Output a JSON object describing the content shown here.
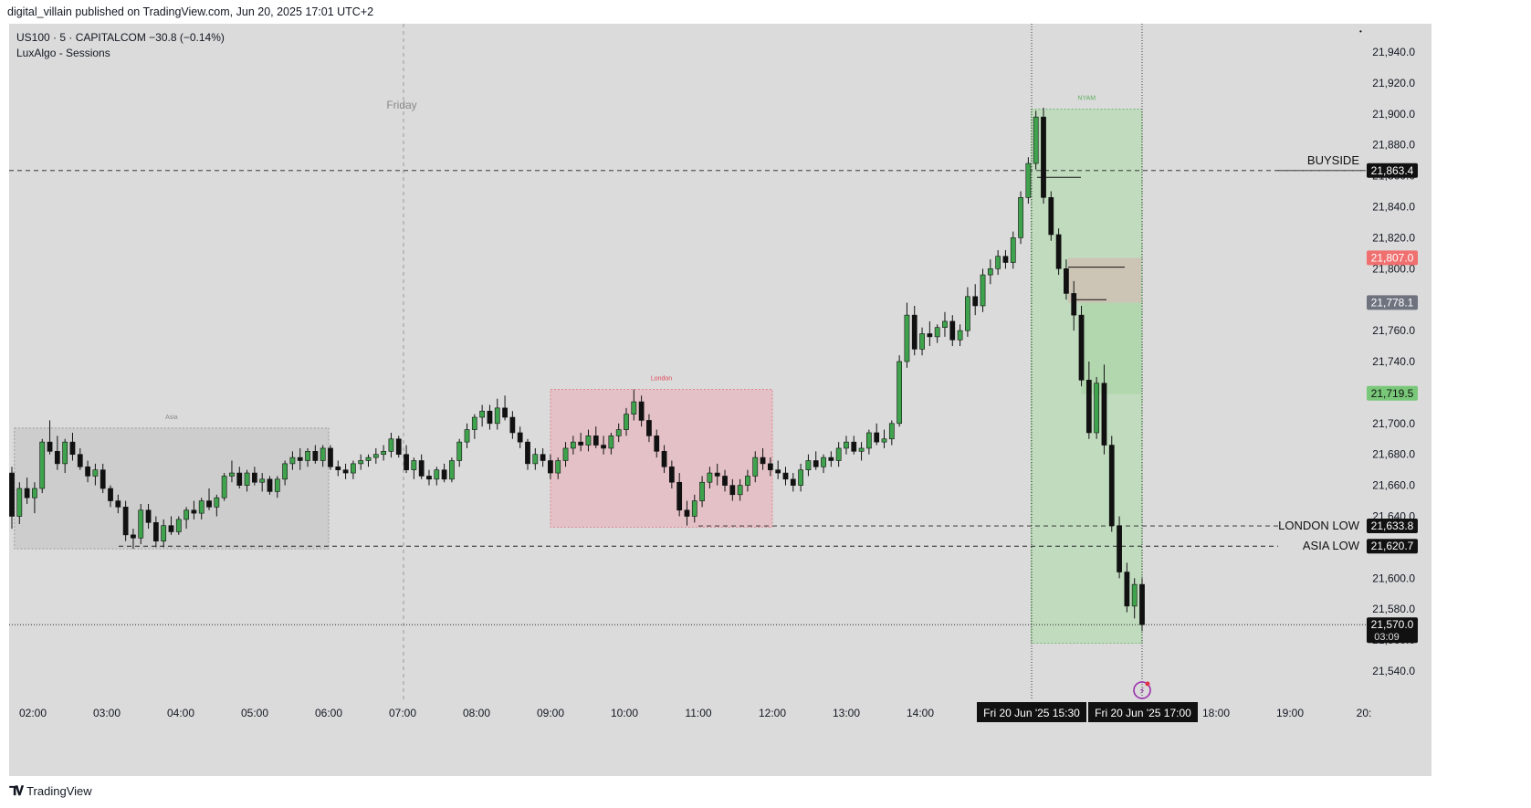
{
  "header": {
    "published_text": "digital_villain published on TradingView.com, Jun 20, 2025 17:01 UTC+2"
  },
  "legend": {
    "symbol_line": "US100 · 5 · CAPITALCOM  −30.8 (−0.14%)",
    "indicator": "LuxAlgo - Sessions"
  },
  "footer": {
    "brand": "TradingView",
    "brand_icon": "tradingview-logo-icon"
  },
  "colors": {
    "background": "#dbdbdb",
    "up_candle": "#3fa34d",
    "down_candle": "#111111",
    "asia_box": "#c8c8c8",
    "london_box": "#e8b7bf",
    "ny_box": "#b7dbb4",
    "price_tag_red": "#f07070",
    "price_tag_gray": "#6f7380",
    "price_tag_green": "#79c879"
  },
  "chart_data": {
    "type": "candlestick",
    "ylim": [
      21530,
      21950
    ],
    "y_ticks": [
      "21,940.0",
      "21,920.0",
      "21,900.0",
      "21,880.0",
      "21,860.0",
      "21,840.0",
      "21,820.0",
      "21,800.0",
      "21,780.0",
      "21,760.0",
      "21,740.0",
      "21,720.0",
      "21,700.0",
      "21,680.0",
      "21,660.0",
      "21,640.0",
      "21,620.0",
      "21,600.0",
      "21,580.0",
      "21,560.0",
      "21,540.0"
    ],
    "x_ticks": [
      "02:00",
      "03:00",
      "04:00",
      "05:00",
      "06:00",
      "07:00",
      "08:00",
      "09:00",
      "10:00",
      "11:00",
      "12:00",
      "13:00",
      "14:00",
      "15:00",
      "16:00",
      "17:00",
      "18:00",
      "19:00",
      "20:"
    ],
    "x_highlight_labels": [
      "Fri 20 Jun '25   15:30",
      "Fri 20 Jun '25   17:00"
    ],
    "day_label": "Friday",
    "sessions": [
      {
        "name": "Asia",
        "start": "01:45",
        "end": "06:00",
        "high": 21697,
        "low": 21619
      },
      {
        "name": "London",
        "start": "09:00",
        "end": "12:00",
        "high": 21722,
        "low": 21633
      },
      {
        "name": "NYAM",
        "start": "15:30",
        "end": "17:00",
        "high": 21903,
        "low": 21558
      }
    ],
    "levels": [
      {
        "label": "BUYSIDE",
        "price": 21863.4,
        "tag": "21,863.4"
      },
      {
        "label": "LONDON LOW",
        "price": 21633.8,
        "tag": "21,633.8"
      },
      {
        "label": "ASIA LOW",
        "price": 21620.7,
        "tag": "21,620.7"
      }
    ],
    "price_tags": [
      {
        "price": 21807.0,
        "tag": "21,807.0",
        "style": "red"
      },
      {
        "price": 21778.1,
        "tag": "21,778.1",
        "style": "gray"
      },
      {
        "price": 21719.5,
        "tag": "21,719.5",
        "style": "green"
      }
    ],
    "last_price": {
      "price": 21570.0,
      "tag": "21,570.0",
      "countdown": "03:09"
    },
    "position_zone": {
      "entry": 21778,
      "stop": 21807,
      "target": 21719
    },
    "candles": [
      [
        21668,
        21672,
        21632,
        21640
      ],
      [
        21640,
        21662,
        21635,
        21658
      ],
      [
        21658,
        21665,
        21648,
        21652
      ],
      [
        21652,
        21662,
        21642,
        21658
      ],
      [
        21658,
        21690,
        21655,
        21688
      ],
      [
        21688,
        21702,
        21680,
        21682
      ],
      [
        21682,
        21692,
        21670,
        21674
      ],
      [
        21674,
        21690,
        21668,
        21688
      ],
      [
        21688,
        21694,
        21676,
        21680
      ],
      [
        21680,
        21684,
        21670,
        21672
      ],
      [
        21672,
        21676,
        21662,
        21666
      ],
      [
        21666,
        21674,
        21660,
        21670
      ],
      [
        21670,
        21674,
        21655,
        21658
      ],
      [
        21658,
        21660,
        21646,
        21650
      ],
      [
        21650,
        21654,
        21642,
        21646
      ],
      [
        21646,
        21650,
        21624,
        21628
      ],
      [
        21628,
        21632,
        21619,
        21626
      ],
      [
        21626,
        21648,
        21622,
        21644
      ],
      [
        21644,
        21648,
        21632,
        21636
      ],
      [
        21636,
        21640,
        21620,
        21624
      ],
      [
        21624,
        21638,
        21620,
        21634
      ],
      [
        21634,
        21640,
        21628,
        21630
      ],
      [
        21630,
        21640,
        21628,
        21638
      ],
      [
        21638,
        21646,
        21632,
        21644
      ],
      [
        21644,
        21650,
        21638,
        21642
      ],
      [
        21642,
        21652,
        21638,
        21650
      ],
      [
        21650,
        21658,
        21644,
        21646
      ],
      [
        21646,
        21654,
        21640,
        21652
      ],
      [
        21652,
        21668,
        21650,
        21666
      ],
      [
        21666,
        21676,
        21662,
        21668
      ],
      [
        21668,
        21672,
        21658,
        21660
      ],
      [
        21660,
        21670,
        21656,
        21668
      ],
      [
        21668,
        21672,
        21660,
        21662
      ],
      [
        21662,
        21668,
        21656,
        21664
      ],
      [
        21664,
        21666,
        21654,
        21656
      ],
      [
        21656,
        21666,
        21652,
        21664
      ],
      [
        21664,
        21676,
        21660,
        21674
      ],
      [
        21674,
        21682,
        21670,
        21678
      ],
      [
        21678,
        21684,
        21670,
        21676
      ],
      [
        21676,
        21684,
        21672,
        21682
      ],
      [
        21682,
        21686,
        21674,
        21676
      ],
      [
        21676,
        21686,
        21672,
        21684
      ],
      [
        21684,
        21686,
        21670,
        21672
      ],
      [
        21672,
        21676,
        21666,
        21670
      ],
      [
        21670,
        21674,
        21664,
        21668
      ],
      [
        21668,
        21676,
        21664,
        21674
      ],
      [
        21674,
        21680,
        21670,
        21676
      ],
      [
        21676,
        21680,
        21672,
        21678
      ],
      [
        21678,
        21684,
        21674,
        21680
      ],
      [
        21680,
        21686,
        21676,
        21682
      ],
      [
        21682,
        21694,
        21678,
        21690
      ],
      [
        21690,
        21692,
        21678,
        21680
      ],
      [
        21680,
        21686,
        21668,
        21670
      ],
      [
        21670,
        21678,
        21664,
        21676
      ],
      [
        21676,
        21680,
        21664,
        21666
      ],
      [
        21666,
        21670,
        21660,
        21664
      ],
      [
        21664,
        21672,
        21660,
        21670
      ],
      [
        21670,
        21674,
        21662,
        21664
      ],
      [
        21664,
        21678,
        21662,
        21676
      ],
      [
        21676,
        21690,
        21672,
        21688
      ],
      [
        21688,
        21700,
        21684,
        21696
      ],
      [
        21696,
        21706,
        21690,
        21704
      ],
      [
        21704,
        21712,
        21698,
        21708
      ],
      [
        21708,
        21712,
        21696,
        21700
      ],
      [
        21700,
        21716,
        21696,
        21710
      ],
      [
        21710,
        21718,
        21702,
        21704
      ],
      [
        21704,
        21708,
        21690,
        21694
      ],
      [
        21694,
        21698,
        21684,
        21688
      ],
      [
        21688,
        21690,
        21670,
        21674
      ],
      [
        21674,
        21684,
        21670,
        21680
      ],
      [
        21680,
        21684,
        21672,
        21676
      ],
      [
        21676,
        21680,
        21664,
        21668
      ],
      [
        21668,
        21678,
        21664,
        21676
      ],
      [
        21676,
        21688,
        21672,
        21684
      ],
      [
        21684,
        21692,
        21680,
        21688
      ],
      [
        21688,
        21694,
        21682,
        21686
      ],
      [
        21686,
        21696,
        21682,
        21692
      ],
      [
        21692,
        21698,
        21684,
        21686
      ],
      [
        21686,
        21692,
        21680,
        21684
      ],
      [
        21684,
        21694,
        21680,
        21692
      ],
      [
        21692,
        21700,
        21688,
        21696
      ],
      [
        21696,
        21710,
        21692,
        21706
      ],
      [
        21706,
        21722,
        21702,
        21714
      ],
      [
        21714,
        21718,
        21698,
        21702
      ],
      [
        21702,
        21706,
        21688,
        21692
      ],
      [
        21692,
        21696,
        21678,
        21682
      ],
      [
        21682,
        21686,
        21668,
        21672
      ],
      [
        21672,
        21676,
        21658,
        21662
      ],
      [
        21662,
        21668,
        21640,
        21644
      ],
      [
        21644,
        21650,
        21634,
        21640
      ],
      [
        21640,
        21654,
        21636,
        21650
      ],
      [
        21650,
        21666,
        21646,
        21662
      ],
      [
        21662,
        21672,
        21658,
        21668
      ],
      [
        21668,
        21674,
        21660,
        21666
      ],
      [
        21666,
        21670,
        21656,
        21660
      ],
      [
        21660,
        21664,
        21650,
        21654
      ],
      [
        21654,
        21664,
        21650,
        21660
      ],
      [
        21660,
        21670,
        21656,
        21666
      ],
      [
        21666,
        21682,
        21662,
        21678
      ],
      [
        21678,
        21684,
        21670,
        21674
      ],
      [
        21674,
        21678,
        21666,
        21670
      ],
      [
        21670,
        21676,
        21664,
        21668
      ],
      [
        21668,
        21672,
        21660,
        21664
      ],
      [
        21664,
        21668,
        21656,
        21660
      ],
      [
        21660,
        21674,
        21656,
        21670
      ],
      [
        21670,
        21680,
        21666,
        21676
      ],
      [
        21676,
        21682,
        21670,
        21672
      ],
      [
        21672,
        21680,
        21668,
        21678
      ],
      [
        21678,
        21682,
        21672,
        21676
      ],
      [
        21676,
        21688,
        21672,
        21684
      ],
      [
        21684,
        21692,
        21680,
        21688
      ],
      [
        21688,
        21692,
        21680,
        21682
      ],
      [
        21682,
        21688,
        21676,
        21684
      ],
      [
        21684,
        21696,
        21680,
        21694
      ],
      [
        21694,
        21700,
        21686,
        21688
      ],
      [
        21688,
        21696,
        21684,
        21690
      ],
      [
        21690,
        21702,
        21686,
        21700
      ],
      [
        21700,
        21744,
        21698,
        21740
      ],
      [
        21740,
        21778,
        21736,
        21770
      ],
      [
        21770,
        21776,
        21744,
        21748
      ],
      [
        21748,
        21762,
        21744,
        21758
      ],
      [
        21758,
        21766,
        21750,
        21756
      ],
      [
        21756,
        21764,
        21752,
        21762
      ],
      [
        21762,
        21772,
        21756,
        21766
      ],
      [
        21766,
        21770,
        21750,
        21754
      ],
      [
        21754,
        21764,
        21750,
        21760
      ],
      [
        21760,
        21788,
        21756,
        21782
      ],
      [
        21782,
        21790,
        21770,
        21776
      ],
      [
        21776,
        21800,
        21772,
        21796
      ],
      [
        21796,
        21806,
        21790,
        21800
      ],
      [
        21800,
        21812,
        21796,
        21808
      ],
      [
        21808,
        21812,
        21800,
        21804
      ],
      [
        21804,
        21824,
        21800,
        21820
      ],
      [
        21820,
        21850,
        21816,
        21846
      ],
      [
        21846,
        21872,
        21842,
        21868
      ],
      [
        21868,
        21902,
        21864,
        21898
      ],
      [
        21898,
        21904,
        21842,
        21846
      ],
      [
        21846,
        21850,
        21818,
        21822
      ],
      [
        21822,
        21826,
        21796,
        21800
      ],
      [
        21800,
        21806,
        21780,
        21784
      ],
      [
        21784,
        21792,
        21760,
        21770
      ],
      [
        21770,
        21776,
        21724,
        21728
      ],
      [
        21728,
        21740,
        21690,
        21694
      ],
      [
        21694,
        21730,
        21690,
        21726
      ],
      [
        21726,
        21738,
        21680,
        21686
      ],
      [
        21686,
        21692,
        21630,
        21634
      ],
      [
        21634,
        21640,
        21600,
        21604
      ],
      [
        21604,
        21610,
        21578,
        21582
      ],
      [
        21582,
        21600,
        21574,
        21596
      ],
      [
        21596,
        21600,
        21566,
        21570
      ]
    ]
  }
}
